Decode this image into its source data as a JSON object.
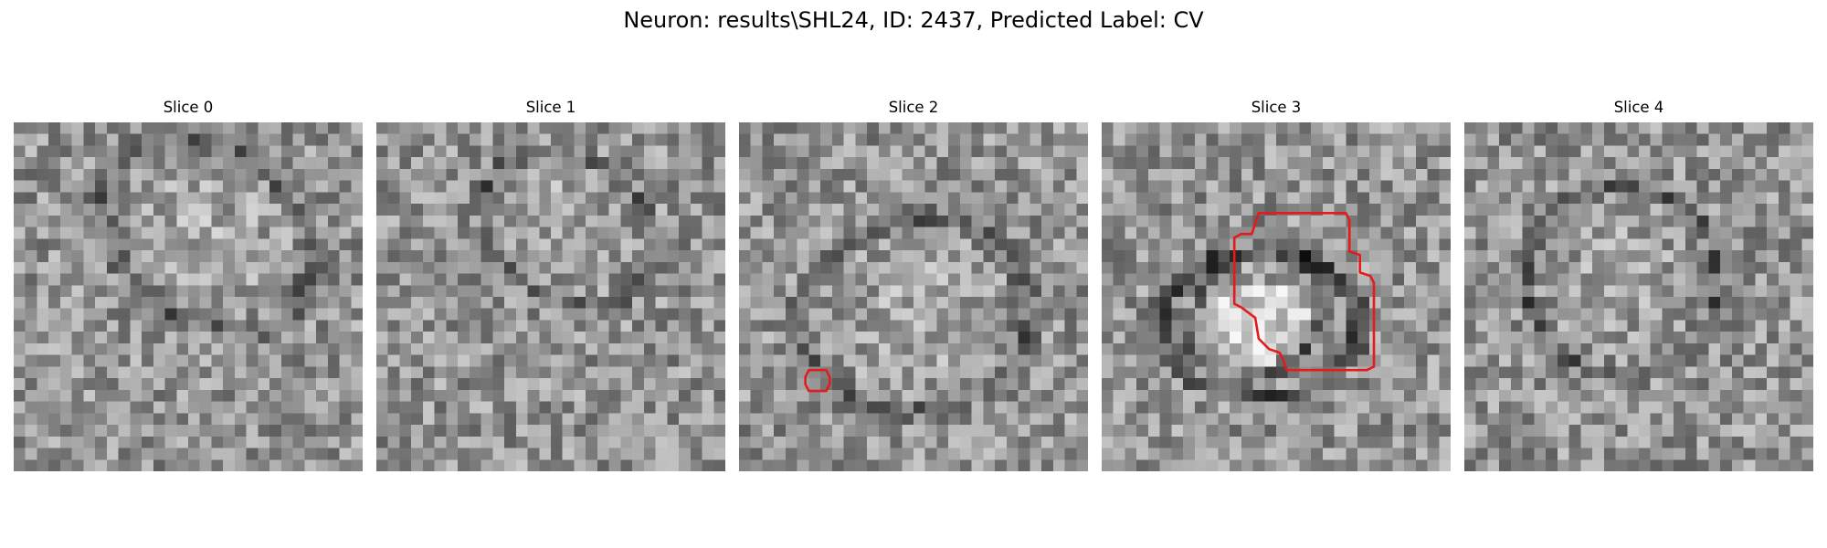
{
  "figure": {
    "title": "Neuron: results\\SHL24, ID: 2437, Predicted Label: CV"
  },
  "slices": [
    {
      "title": "Slice 0",
      "seed": 11,
      "blob": [
        0.55,
        0.32,
        0.3,
        0.22,
        38
      ],
      "ring": null,
      "roi": null
    },
    {
      "title": "Slice 1",
      "seed": 23,
      "blob": [
        0.55,
        0.3,
        0.24,
        0.18,
        35
      ],
      "ring": null,
      "roi": null
    },
    {
      "title": "Slice 2",
      "seed": 37,
      "blob": [
        0.5,
        0.55,
        0.3,
        0.25,
        -10
      ],
      "ring": null,
      "roi": "small-octagon"
    },
    {
      "title": "Slice 3",
      "seed": 51,
      "blob": [
        0.45,
        0.55,
        0.15,
        0.2,
        45
      ],
      "ring": [
        0.45,
        0.58,
        0.3,
        0.22
      ],
      "roi": "large-polygon"
    },
    {
      "title": "Slice 4",
      "seed": 67,
      "blob": [
        0.45,
        0.45,
        0.25,
        0.25,
        -20
      ],
      "ring": null,
      "roi": null
    }
  ],
  "style": {
    "roi_color": "#e41a1c"
  }
}
